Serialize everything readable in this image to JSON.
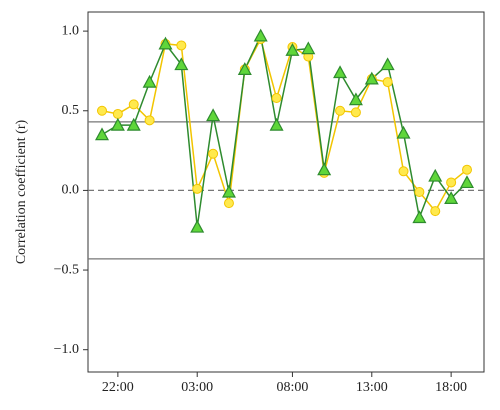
{
  "chart_data": {
    "type": "line",
    "ylabel": "Correlation coefficient (r)",
    "categories": [
      null,
      "22:00",
      null,
      null,
      null,
      null,
      "03:00",
      null,
      null,
      null,
      null,
      null,
      "08:00",
      null,
      null,
      null,
      null,
      "13:00",
      null,
      null,
      null,
      null,
      "18:00",
      null
    ],
    "series": [
      {
        "color": "#f2c500",
        "marker": "circle",
        "marker_fill": "#ffe94d",
        "values": [
          0.5,
          0.48,
          0.54,
          0.44,
          0.92,
          0.91,
          0.01,
          0.23,
          -0.08,
          0.76,
          0.95,
          0.58,
          0.9,
          0.84,
          0.11,
          0.5,
          0.49,
          0.7,
          0.68,
          0.12,
          -0.01,
          -0.13,
          0.05,
          0.13
        ]
      },
      {
        "color": "#2e8b2e",
        "marker": "triangle",
        "marker_fill": "#5fd63a",
        "values": [
          0.35,
          0.41,
          0.41,
          0.68,
          0.92,
          0.79,
          -0.23,
          0.47,
          -0.01,
          0.76,
          0.97,
          0.41,
          0.88,
          0.89,
          0.13,
          0.74,
          0.57,
          0.7,
          0.79,
          0.36,
          -0.17,
          0.09,
          -0.05,
          0.05
        ]
      }
    ],
    "reference_lines": [
      {
        "value": 0.43,
        "style": "solid"
      },
      {
        "value": 0,
        "style": "dashed"
      },
      {
        "value": -0.43,
        "style": "solid"
      }
    ],
    "ylim": [
      -1.14,
      1.12
    ],
    "yticks": [
      {
        "value": -1,
        "label": "−1.0"
      },
      {
        "value": -0.5,
        "label": "−0.5"
      },
      {
        "value": 0,
        "label": "0.0"
      },
      {
        "value": 0.5,
        "label": "0.5"
      },
      {
        "value": 1,
        "label": "1.0"
      }
    ]
  }
}
